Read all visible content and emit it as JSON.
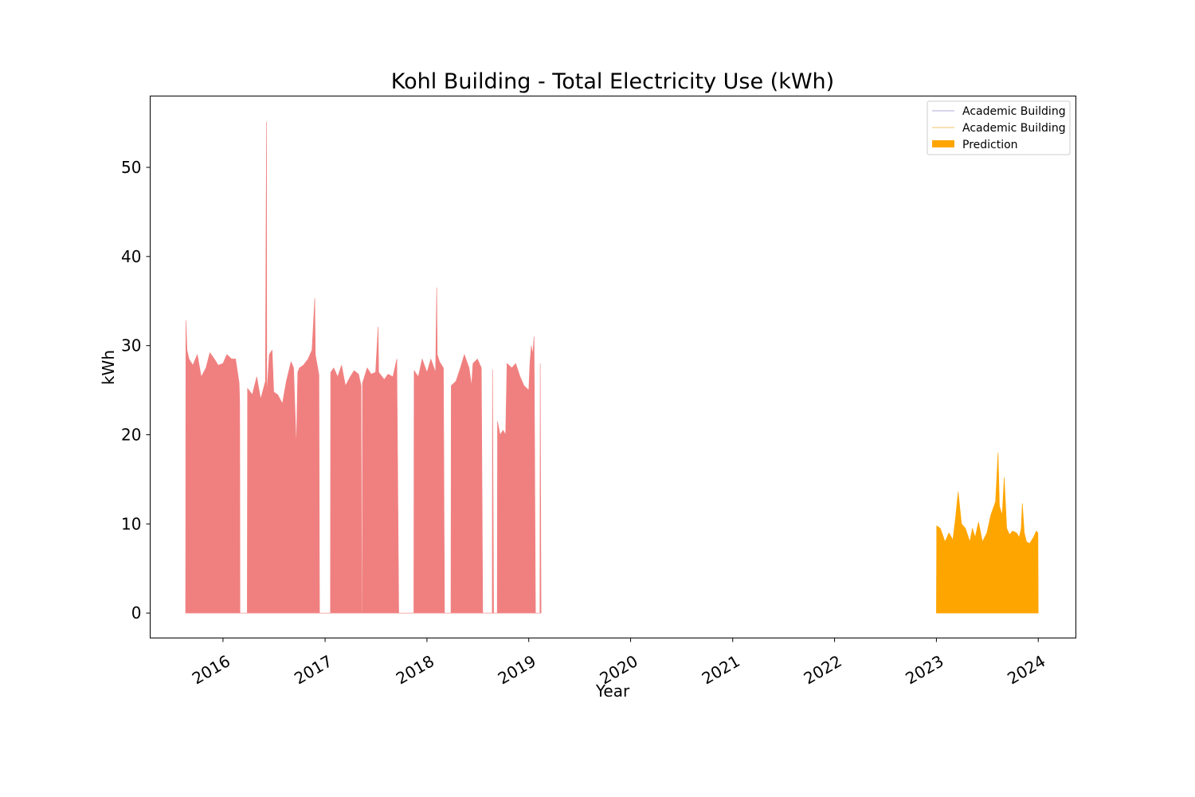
{
  "chart_data": {
    "type": "area",
    "title": "Kohl Building - Total Electricity Use (kWh)",
    "xlabel": "Year",
    "ylabel": "kWh",
    "xlim": [
      "2015-04-15",
      "2024-05-15"
    ],
    "ylim": [
      -2.8,
      58.0
    ],
    "x_ticks": [
      "2016",
      "2017",
      "2018",
      "2019",
      "2020",
      "2021",
      "2022",
      "2023",
      "2024"
    ],
    "y_ticks": [
      "0",
      "10",
      "20",
      "30",
      "40",
      "50"
    ],
    "grid": false,
    "legend": {
      "placement": "upper right",
      "entries": [
        {
          "label": "Academic Building",
          "kind": "line",
          "color": "#b0a8d8"
        },
        {
          "label": "Academic Building",
          "kind": "line",
          "color": "#f3c26a"
        },
        {
          "label": "Prediction",
          "kind": "patch",
          "color": "#ffa500"
        }
      ]
    },
    "series": [
      {
        "label": "Academic Building",
        "color": "#f08080",
        "points": [
          [
            "2015-08-20",
            0
          ],
          [
            "2015-08-21",
            32.8
          ],
          [
            "2015-08-25",
            29.5
          ],
          [
            "2015-09-01",
            28.5
          ],
          [
            "2015-09-15",
            27.8
          ],
          [
            "2015-10-01",
            29.0
          ],
          [
            "2015-10-15",
            26.5
          ],
          [
            "2015-11-01",
            27.5
          ],
          [
            "2015-11-15",
            29.2
          ],
          [
            "2015-12-01",
            28.5
          ],
          [
            "2015-12-15",
            27.8
          ],
          [
            "2016-01-01",
            28.0
          ],
          [
            "2016-01-15",
            29.0
          ],
          [
            "2016-02-01",
            28.5
          ],
          [
            "2016-02-15",
            28.5
          ],
          [
            "2016-02-28",
            25.8
          ],
          [
            "2016-03-01",
            23.5
          ],
          [
            "2016-03-02",
            0
          ],
          [
            "2016-03-28",
            0
          ],
          [
            "2016-03-29",
            25.2
          ],
          [
            "2016-04-15",
            24.5
          ],
          [
            "2016-05-01",
            26.5
          ],
          [
            "2016-05-15",
            24.0
          ],
          [
            "2016-06-01",
            26.0
          ],
          [
            "2016-06-05",
            55.1
          ],
          [
            "2016-06-06",
            24.5
          ],
          [
            "2016-06-15",
            29.0
          ],
          [
            "2016-06-25",
            29.5
          ],
          [
            "2016-07-01",
            24.8
          ],
          [
            "2016-07-15",
            24.5
          ],
          [
            "2016-08-01",
            23.5
          ],
          [
            "2016-08-15",
            26.0
          ],
          [
            "2016-09-01",
            28.2
          ],
          [
            "2016-09-10",
            27.5
          ],
          [
            "2016-09-20",
            18.5
          ],
          [
            "2016-09-25",
            27.0
          ],
          [
            "2016-10-01",
            27.5
          ],
          [
            "2016-10-15",
            27.8
          ],
          [
            "2016-11-01",
            28.5
          ],
          [
            "2016-11-15",
            29.5
          ],
          [
            "2016-11-25",
            35.3
          ],
          [
            "2016-11-27",
            29.0
          ],
          [
            "2016-12-10",
            26.7
          ],
          [
            "2016-12-12",
            0
          ],
          [
            "2017-01-20",
            0
          ],
          [
            "2017-01-21",
            27.0
          ],
          [
            "2017-02-01",
            27.5
          ],
          [
            "2017-02-15",
            26.5
          ],
          [
            "2017-03-01",
            27.8
          ],
          [
            "2017-03-15",
            25.5
          ],
          [
            "2017-04-01",
            26.5
          ],
          [
            "2017-04-15",
            27.2
          ],
          [
            "2017-05-01",
            26.8
          ],
          [
            "2017-05-10",
            25.5
          ],
          [
            "2017-05-12",
            0
          ],
          [
            "2017-05-14",
            0
          ],
          [
            "2017-05-15",
            25.8
          ],
          [
            "2017-06-01",
            27.5
          ],
          [
            "2017-06-15",
            26.8
          ],
          [
            "2017-07-01",
            27.0
          ],
          [
            "2017-07-10",
            32.1
          ],
          [
            "2017-07-12",
            27.0
          ],
          [
            "2017-08-01",
            26.2
          ],
          [
            "2017-08-15",
            26.8
          ],
          [
            "2017-09-01",
            26.5
          ],
          [
            "2017-09-15",
            28.5
          ],
          [
            "2017-09-22",
            0
          ],
          [
            "2017-11-15",
            0
          ],
          [
            "2017-11-16",
            27.2
          ],
          [
            "2017-12-01",
            26.5
          ],
          [
            "2017-12-15",
            28.5
          ],
          [
            "2018-01-01",
            27.0
          ],
          [
            "2018-01-15",
            28.5
          ],
          [
            "2018-02-01",
            27.0
          ],
          [
            "2018-02-05",
            36.5
          ],
          [
            "2018-02-07",
            29.0
          ],
          [
            "2018-02-15",
            28.2
          ],
          [
            "2018-03-01",
            27.5
          ],
          [
            "2018-03-05",
            0
          ],
          [
            "2018-03-28",
            0
          ],
          [
            "2018-03-29",
            25.5
          ],
          [
            "2018-04-15",
            26.0
          ],
          [
            "2018-05-01",
            27.5
          ],
          [
            "2018-05-15",
            29.0
          ],
          [
            "2018-06-01",
            27.5
          ],
          [
            "2018-06-10",
            25.5
          ],
          [
            "2018-06-15",
            28.0
          ],
          [
            "2018-07-01",
            28.5
          ],
          [
            "2018-07-15",
            27.5
          ],
          [
            "2018-07-20",
            0
          ],
          [
            "2018-08-23",
            0
          ],
          [
            "2018-08-24",
            27.3
          ],
          [
            "2018-08-28",
            0
          ],
          [
            "2018-09-10",
            0
          ],
          [
            "2018-09-11",
            21.5
          ],
          [
            "2018-09-20",
            20.0
          ],
          [
            "2018-10-01",
            20.5
          ],
          [
            "2018-10-10",
            20.0
          ],
          [
            "2018-10-15",
            28.0
          ],
          [
            "2018-11-01",
            27.5
          ],
          [
            "2018-11-15",
            28.0
          ],
          [
            "2018-12-01",
            26.5
          ],
          [
            "2018-12-15",
            25.5
          ],
          [
            "2019-01-01",
            25.0
          ],
          [
            "2019-01-05",
            28.0
          ],
          [
            "2019-01-10",
            30.0
          ],
          [
            "2019-01-15",
            29.0
          ],
          [
            "2019-01-20",
            31.0
          ],
          [
            "2019-01-25",
            0
          ],
          [
            "2019-02-10",
            0
          ],
          [
            "2019-02-11",
            28.0
          ],
          [
            "2019-02-14",
            0
          ]
        ]
      },
      {
        "label": "Prediction",
        "color": "#ffa500",
        "points": [
          [
            "2023-01-01",
            0
          ],
          [
            "2023-01-02",
            9.8
          ],
          [
            "2023-01-15",
            9.5
          ],
          [
            "2023-02-01",
            8.0
          ],
          [
            "2023-02-15",
            9.0
          ],
          [
            "2023-03-01",
            8.2
          ],
          [
            "2023-03-10",
            10.5
          ],
          [
            "2023-03-20",
            13.6
          ],
          [
            "2023-04-01",
            10.0
          ],
          [
            "2023-04-15",
            9.5
          ],
          [
            "2023-05-01",
            8.0
          ],
          [
            "2023-05-10",
            9.5
          ],
          [
            "2023-05-20",
            8.5
          ],
          [
            "2023-06-01",
            10.2
          ],
          [
            "2023-06-15",
            8.0
          ],
          [
            "2023-07-01",
            9.0
          ],
          [
            "2023-07-15",
            11.0
          ],
          [
            "2023-08-01",
            12.5
          ],
          [
            "2023-08-10",
            18.0
          ],
          [
            "2023-08-15",
            12.0
          ],
          [
            "2023-08-25",
            11.0
          ],
          [
            "2023-09-01",
            15.2
          ],
          [
            "2023-09-10",
            9.5
          ],
          [
            "2023-09-20",
            8.8
          ],
          [
            "2023-10-01",
            9.2
          ],
          [
            "2023-10-15",
            9.0
          ],
          [
            "2023-10-25",
            8.5
          ],
          [
            "2023-11-01",
            9.5
          ],
          [
            "2023-11-05",
            12.3
          ],
          [
            "2023-11-12",
            9.0
          ],
          [
            "2023-11-20",
            8.0
          ],
          [
            "2023-12-01",
            7.8
          ],
          [
            "2023-12-15",
            8.5
          ],
          [
            "2023-12-25",
            9.2
          ],
          [
            "2023-12-31",
            9.0
          ],
          [
            "2024-01-01",
            0
          ]
        ]
      }
    ]
  }
}
